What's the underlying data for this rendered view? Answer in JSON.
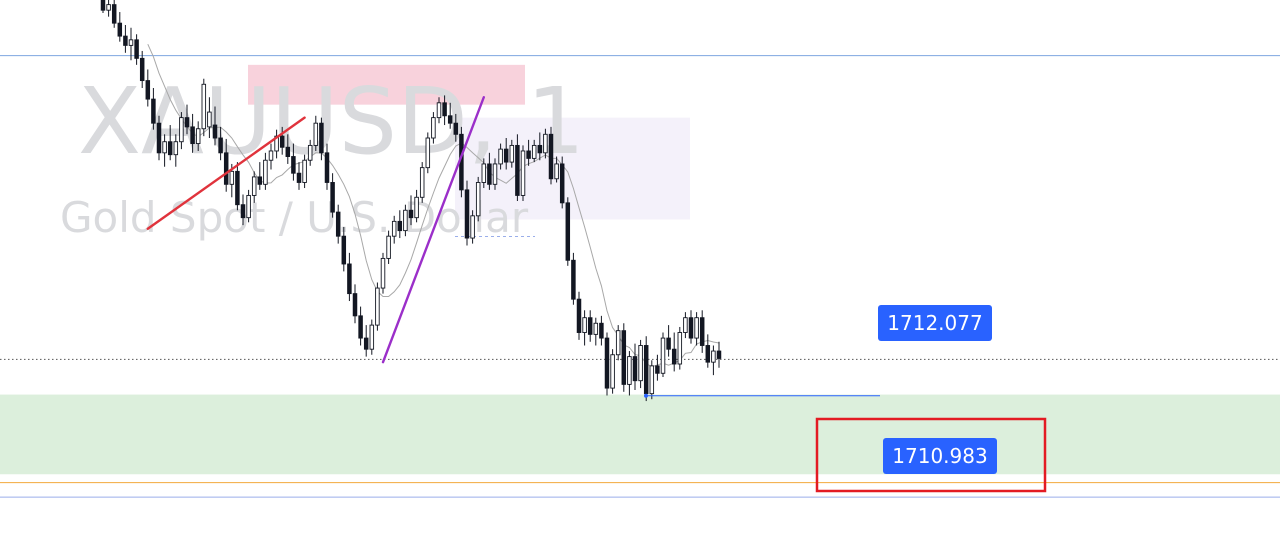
{
  "watermark": {
    "symbol": "XAUUSD, 1",
    "description": "Gold Spot / U.S. Dollar"
  },
  "colors": {
    "bg": "#ffffff",
    "candle": "#131722",
    "ma": "#a8a8a8",
    "support_zone": "#dcefdc",
    "supply_zone": "#f8d2dc",
    "range_box": "#f4f1fa",
    "line_red": "#e0333c",
    "line_purple": "#9b2fc9",
    "hline_blue": "#7ea6e0",
    "hline_orange": "#f2a93b",
    "hline_violet": "#9aaeea",
    "label_bg": "#2962ff",
    "highlight_box": "#e31b23"
  },
  "chart_data": {
    "type": "candlestick",
    "symbol": "XAUUSD, 1",
    "description": "Gold Spot / U.S. Dollar",
    "ylim": [
      1710.52,
      1716.35
    ],
    "price_labels": [
      {
        "name": "swing-low-level",
        "price": 1712.077
      },
      {
        "name": "target-level",
        "price": 1710.983
      }
    ],
    "horizontal_lines": [
      {
        "name": "upper-blue",
        "price": 1715.75,
        "color": "#7ea6e0"
      },
      {
        "name": "current-price-dotted",
        "price": 1712.47,
        "color": "#555555",
        "style": "dotted"
      },
      {
        "name": "orange-level",
        "price": 1711.14,
        "color": "#f2a93b"
      },
      {
        "name": "target-level-line",
        "price": 1710.983,
        "color": "#9aaeea"
      }
    ],
    "zones": [
      {
        "name": "demand-zone",
        "from": 1711.23,
        "to": 1712.09,
        "color": "#dcefdc"
      },
      {
        "name": "supply-zone",
        "from": 1715.22,
        "to": 1715.65,
        "color": "#f8d2dc"
      },
      {
        "name": "range-box",
        "from": 1713.98,
        "to": 1715.08,
        "color": "#f4f1fa"
      }
    ],
    "candles": [
      [
        1716.42,
        1716.46,
        1716.21,
        1716.24
      ],
      [
        1716.24,
        1716.4,
        1716.17,
        1716.3
      ],
      [
        1716.3,
        1716.44,
        1716.05,
        1716.1
      ],
      [
        1716.1,
        1716.22,
        1715.9,
        1715.96
      ],
      [
        1715.96,
        1716.08,
        1715.78,
        1715.86
      ],
      [
        1715.86,
        1716.05,
        1715.7,
        1715.92
      ],
      [
        1715.92,
        1715.98,
        1715.65,
        1715.72
      ],
      [
        1715.72,
        1715.8,
        1715.4,
        1715.48
      ],
      [
        1715.48,
        1715.6,
        1715.2,
        1715.28
      ],
      [
        1715.28,
        1715.4,
        1714.95,
        1715.02
      ],
      [
        1715.02,
        1715.1,
        1714.62,
        1714.7
      ],
      [
        1714.7,
        1714.9,
        1714.55,
        1714.82
      ],
      [
        1714.82,
        1715.0,
        1714.62,
        1714.68
      ],
      [
        1714.68,
        1714.9,
        1714.55,
        1714.82
      ],
      [
        1714.82,
        1715.14,
        1714.74,
        1715.08
      ],
      [
        1715.08,
        1715.22,
        1714.9,
        1714.98
      ],
      [
        1714.98,
        1715.12,
        1714.7,
        1714.8
      ],
      [
        1714.8,
        1715.04,
        1714.72,
        1714.96
      ],
      [
        1714.96,
        1715.5,
        1714.88,
        1715.44
      ],
      [
        1714.98,
        1715.3,
        1714.86,
        1715.14
      ],
      [
        1715.0,
        1715.2,
        1714.78,
        1714.86
      ],
      [
        1714.86,
        1714.98,
        1714.62,
        1714.7
      ],
      [
        1714.7,
        1714.85,
        1714.28,
        1714.36
      ],
      [
        1714.36,
        1714.58,
        1714.22,
        1714.5
      ],
      [
        1714.5,
        1714.6,
        1714.08,
        1714.14
      ],
      [
        1714.14,
        1714.25,
        1713.92,
        1714.0
      ],
      [
        1714.0,
        1714.3,
        1713.95,
        1714.24
      ],
      [
        1714.24,
        1714.5,
        1714.16,
        1714.44
      ],
      [
        1714.44,
        1714.6,
        1714.3,
        1714.36
      ],
      [
        1714.36,
        1714.7,
        1714.3,
        1714.62
      ],
      [
        1714.62,
        1714.8,
        1714.52,
        1714.72
      ],
      [
        1714.72,
        1714.95,
        1714.64,
        1714.88
      ],
      [
        1714.88,
        1714.98,
        1714.68,
        1714.76
      ],
      [
        1714.76,
        1714.9,
        1714.58,
        1714.66
      ],
      [
        1714.66,
        1714.8,
        1714.4,
        1714.48
      ],
      [
        1714.48,
        1714.6,
        1714.3,
        1714.38
      ],
      [
        1714.38,
        1714.68,
        1714.32,
        1714.62
      ],
      [
        1714.62,
        1714.84,
        1714.56,
        1714.78
      ],
      [
        1714.78,
        1715.1,
        1714.72,
        1715.02
      ],
      [
        1715.02,
        1715.08,
        1714.62,
        1714.7
      ],
      [
        1714.7,
        1714.8,
        1714.3,
        1714.38
      ],
      [
        1714.38,
        1714.48,
        1714.0,
        1714.06
      ],
      [
        1714.06,
        1714.14,
        1713.72,
        1713.8
      ],
      [
        1713.8,
        1713.9,
        1713.42,
        1713.5
      ],
      [
        1713.5,
        1713.62,
        1713.1,
        1713.18
      ],
      [
        1713.18,
        1713.28,
        1712.86,
        1712.94
      ],
      [
        1712.94,
        1713.04,
        1712.62,
        1712.7
      ],
      [
        1712.7,
        1712.84,
        1712.5,
        1712.58
      ],
      [
        1712.58,
        1712.9,
        1712.52,
        1712.84
      ],
      [
        1712.84,
        1713.3,
        1712.78,
        1713.24
      ],
      [
        1713.24,
        1713.62,
        1713.18,
        1713.56
      ],
      [
        1713.56,
        1713.86,
        1713.5,
        1713.8
      ],
      [
        1713.8,
        1714.02,
        1713.72,
        1713.96
      ],
      [
        1713.96,
        1714.08,
        1713.78,
        1713.86
      ],
      [
        1713.86,
        1714.14,
        1713.8,
        1714.08
      ],
      [
        1714.08,
        1714.24,
        1713.92,
        1714.0
      ],
      [
        1714.0,
        1714.3,
        1713.95,
        1714.22
      ],
      [
        1714.22,
        1714.6,
        1714.16,
        1714.54
      ],
      [
        1714.54,
        1714.92,
        1714.48,
        1714.86
      ],
      [
        1714.86,
        1715.14,
        1714.8,
        1715.08
      ],
      [
        1715.08,
        1715.3,
        1715.02,
        1715.24
      ],
      [
        1715.24,
        1715.32,
        1715.0,
        1715.1
      ],
      [
        1715.1,
        1715.24,
        1714.96,
        1715.02
      ],
      [
        1715.02,
        1715.12,
        1714.82,
        1714.9
      ],
      [
        1714.9,
        1714.98,
        1714.22,
        1714.3
      ],
      [
        1714.3,
        1714.4,
        1713.7,
        1713.78
      ],
      [
        1713.78,
        1714.08,
        1713.72,
        1714.02
      ],
      [
        1714.02,
        1714.44,
        1713.96,
        1714.38
      ],
      [
        1714.38,
        1714.64,
        1714.32,
        1714.58
      ],
      [
        1714.58,
        1714.7,
        1714.3,
        1714.36
      ],
      [
        1714.36,
        1714.64,
        1714.3,
        1714.58
      ],
      [
        1714.58,
        1714.8,
        1714.52,
        1714.74
      ],
      [
        1714.74,
        1714.86,
        1714.52,
        1714.6
      ],
      [
        1714.6,
        1714.84,
        1714.54,
        1714.78
      ],
      [
        1714.78,
        1714.9,
        1714.18,
        1714.24
      ],
      [
        1714.24,
        1714.78,
        1714.18,
        1714.72
      ],
      [
        1714.72,
        1714.84,
        1714.56,
        1714.64
      ],
      [
        1714.64,
        1714.84,
        1714.6,
        1714.78
      ],
      [
        1714.78,
        1714.92,
        1714.62,
        1714.7
      ],
      [
        1714.7,
        1714.96,
        1714.64,
        1714.9
      ],
      [
        1714.9,
        1714.98,
        1714.36,
        1714.42
      ],
      [
        1714.42,
        1714.66,
        1714.38,
        1714.58
      ],
      [
        1714.58,
        1714.66,
        1714.1,
        1714.16
      ],
      [
        1714.16,
        1714.22,
        1713.48,
        1713.54
      ],
      [
        1713.54,
        1713.62,
        1713.06,
        1713.12
      ],
      [
        1713.12,
        1713.2,
        1712.68,
        1712.76
      ],
      [
        1712.76,
        1713.0,
        1712.62,
        1712.92
      ],
      [
        1712.92,
        1713.0,
        1712.66,
        1712.74
      ],
      [
        1712.74,
        1712.92,
        1712.62,
        1712.86
      ],
      [
        1712.86,
        1712.94,
        1712.62,
        1712.7
      ],
      [
        1712.7,
        1712.76,
        1712.08,
        1712.16
      ],
      [
        1712.16,
        1712.58,
        1712.1,
        1712.52
      ],
      [
        1712.52,
        1712.84,
        1712.46,
        1712.78
      ],
      [
        1712.78,
        1712.86,
        1712.12,
        1712.2
      ],
      [
        1712.2,
        1712.56,
        1712.08,
        1712.5
      ],
      [
        1712.5,
        1712.64,
        1712.14,
        1712.24
      ],
      [
        1712.24,
        1712.68,
        1712.16,
        1712.62
      ],
      [
        1712.62,
        1712.72,
        1712.02,
        1712.1
      ],
      [
        1712.1,
        1712.46,
        1712.04,
        1712.4
      ],
      [
        1712.4,
        1712.52,
        1712.24,
        1712.32
      ],
      [
        1712.32,
        1712.76,
        1712.28,
        1712.7
      ],
      [
        1712.7,
        1712.84,
        1712.5,
        1712.58
      ],
      [
        1712.58,
        1712.76,
        1712.34,
        1712.42
      ],
      [
        1712.42,
        1712.82,
        1712.36,
        1712.76
      ],
      [
        1712.76,
        1712.98,
        1712.7,
        1712.92
      ],
      [
        1712.92,
        1713.0,
        1712.64,
        1712.7
      ],
      [
        1712.7,
        1712.98,
        1712.62,
        1712.92
      ],
      [
        1712.92,
        1713.0,
        1712.54,
        1712.62
      ],
      [
        1712.62,
        1712.74,
        1712.38,
        1712.44
      ],
      [
        1712.44,
        1712.62,
        1712.3,
        1712.56
      ],
      [
        1712.56,
        1712.66,
        1712.38,
        1712.48
      ]
    ],
    "ma_period": 9,
    "trendlines": [
      {
        "name": "red-uptrend-line",
        "color": "#e0333c",
        "from": [
          4,
          1713.88
        ],
        "to": [
          32,
          1715.08
        ]
      },
      {
        "name": "purple-uptrend-line",
        "color": "#9b2fc9",
        "from": [
          46,
          1712.44
        ],
        "to": [
          64,
          1715.3
        ]
      }
    ]
  }
}
